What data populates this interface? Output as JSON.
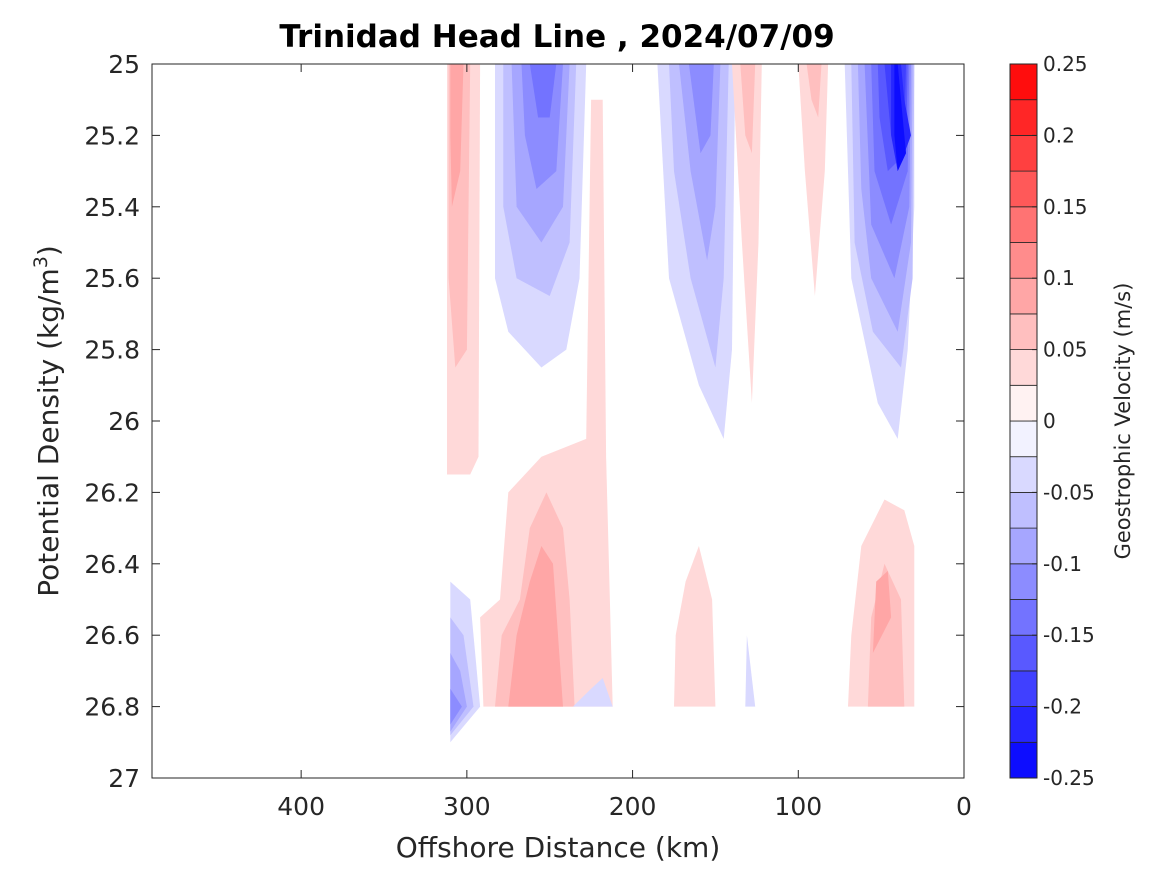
{
  "chart_data": {
    "type": "heatmap",
    "subtype": "filled-contour",
    "title": "Trinidad Head Line , 2024/07/09",
    "xlabel": "Offshore Distance (km)",
    "ylabel_main": "Potential Density (kg/m",
    "ylabel_sup": "3",
    "ylabel_end": ")",
    "colorbar_label": "Geostrophic Velocity (m/s)",
    "x_reversed": true,
    "xlim": [
      0,
      490
    ],
    "ylim": [
      25,
      27
    ],
    "y_reversed": true,
    "x_ticks": [
      400,
      300,
      200,
      100,
      0
    ],
    "x_tick_labels": [
      "400",
      "300",
      "200",
      "100",
      "0"
    ],
    "y_ticks": [
      25,
      25.2,
      25.4,
      25.6,
      25.8,
      26,
      26.2,
      26.4,
      26.6,
      26.8,
      27
    ],
    "y_tick_labels": [
      "25",
      "25.2",
      "25.4",
      "25.6",
      "25.8",
      "26",
      "26.2",
      "26.4",
      "26.6",
      "26.8",
      "27"
    ],
    "colorbar": {
      "range": [
        -0.25,
        0.25
      ],
      "levels": [
        -0.25,
        -0.225,
        -0.2,
        -0.175,
        -0.15,
        -0.125,
        -0.1,
        -0.075,
        -0.05,
        -0.025,
        0,
        0.025,
        0.05,
        0.075,
        0.1,
        0.125,
        0.15,
        0.175,
        0.2,
        0.225,
        0.25
      ],
      "tick_values": [
        0.25,
        0.2,
        0.15,
        0.1,
        0.05,
        0,
        -0.05,
        -0.1,
        -0.15,
        -0.2,
        -0.25
      ],
      "tick_labels": [
        "0.25",
        "0.2",
        "0.15",
        "0.1",
        "0.05",
        "0",
        "-0.05",
        "-0.1",
        "-0.15",
        "-0.2",
        "-0.25"
      ],
      "colormap": "blue-white-red",
      "negative_color": "#0000ff",
      "positive_color": "#ff0000",
      "zero_color": "#ffffff"
    },
    "features": [
      {
        "name": "positive-core-310km",
        "sign": "positive",
        "x_range_km": [
          290,
          310
        ],
        "density_range": [
          25.0,
          26.15
        ],
        "peak_velocity": 0.1
      },
      {
        "name": "negative-core-250km",
        "sign": "negative",
        "x_range_km": [
          230,
          280
        ],
        "density_range": [
          25.0,
          25.85
        ],
        "peak_velocity": -0.15
      },
      {
        "name": "positive-plume-220km",
        "sign": "positive",
        "x_range_km": [
          210,
          290
        ],
        "density_range": [
          25.1,
          26.8
        ],
        "peak_velocity": 0.1
      },
      {
        "name": "negative-core-160km",
        "sign": "negative",
        "x_range_km": [
          140,
          180
        ],
        "density_range": [
          25.0,
          26.05
        ],
        "peak_velocity": -0.125
      },
      {
        "name": "positive-band-130km",
        "sign": "positive",
        "x_range_km": [
          120,
          140
        ],
        "density_range": [
          25.0,
          25.95
        ],
        "peak_velocity": 0.05
      },
      {
        "name": "positive-band-90km",
        "sign": "positive",
        "x_range_km": [
          80,
          100
        ],
        "density_range": [
          25.0,
          25.65
        ],
        "peak_velocity": 0.05
      },
      {
        "name": "negative-coastal-jet",
        "sign": "negative",
        "x_range_km": [
          30,
          70
        ],
        "density_range": [
          25.0,
          26.05
        ],
        "peak_velocity": -0.25
      },
      {
        "name": "negative-deep-310km",
        "sign": "negative",
        "x_range_km": [
          290,
          310
        ],
        "density_range": [
          26.45,
          26.9
        ],
        "peak_velocity": -0.125
      },
      {
        "name": "positive-deep-160km",
        "sign": "positive",
        "x_range_km": [
          150,
          175
        ],
        "density_range": [
          26.35,
          26.8
        ],
        "peak_velocity": 0.05
      },
      {
        "name": "positive-deep-50km",
        "sign": "positive",
        "x_range_km": [
          30,
          70
        ],
        "density_range": [
          26.25,
          26.8
        ],
        "peak_velocity": 0.075
      }
    ]
  }
}
